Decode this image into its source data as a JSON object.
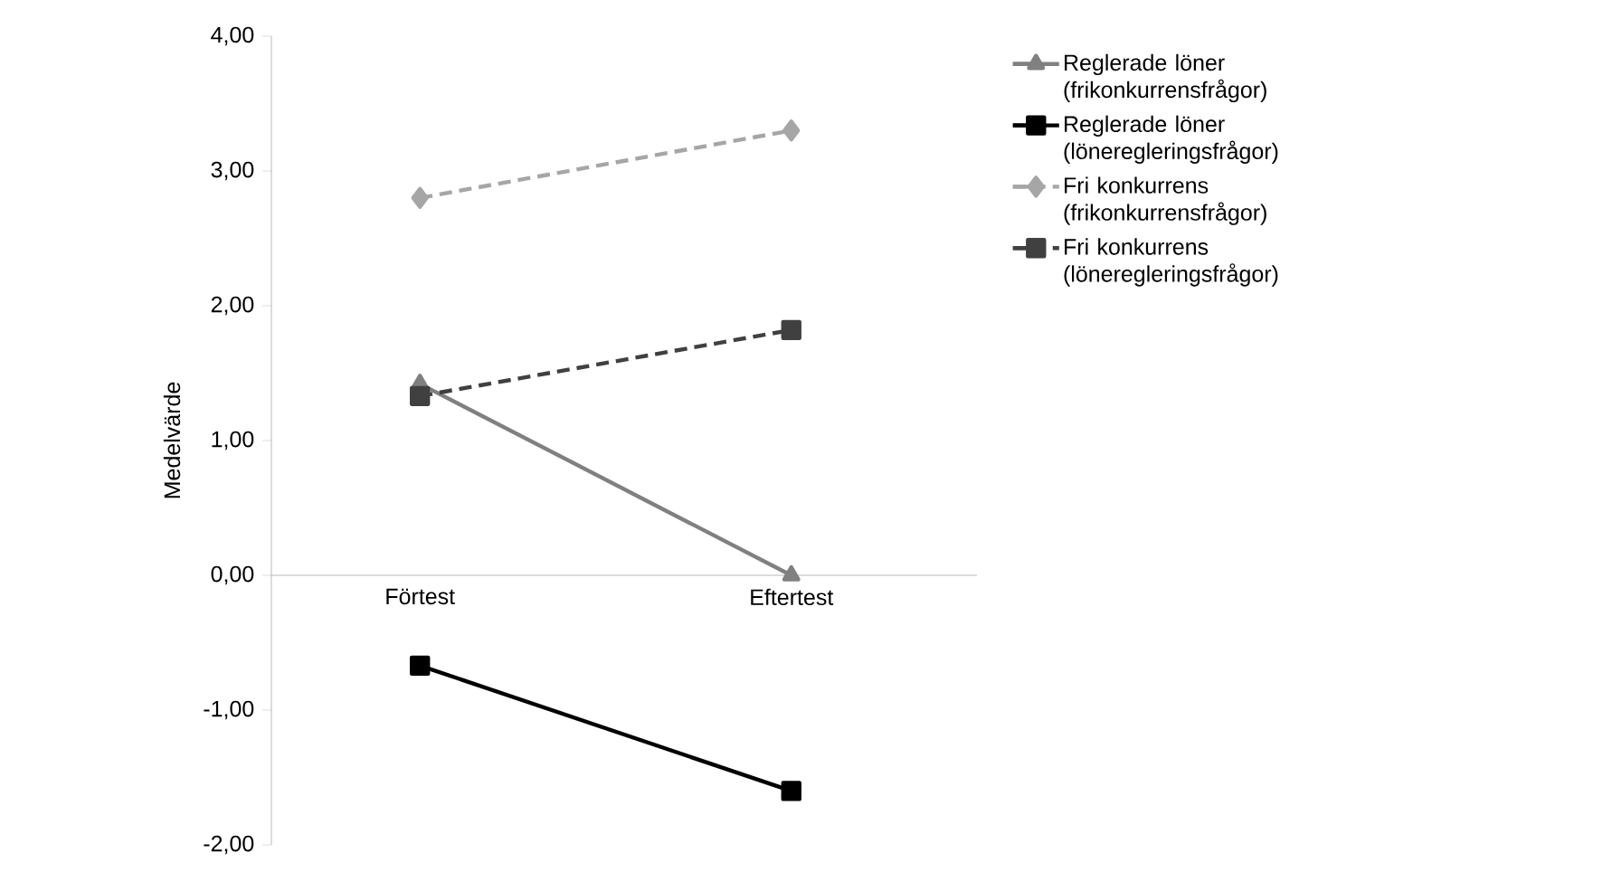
{
  "chart_data": {
    "type": "line",
    "ylabel": "Medelvärde",
    "categories": [
      "Förtest",
      "Eftertest"
    ],
    "ylim": [
      -2,
      4
    ],
    "yticks": [
      {
        "value": -2,
        "label": "-2,00"
      },
      {
        "value": -1,
        "label": "-1,00"
      },
      {
        "value": 0,
        "label": "0,00"
      },
      {
        "value": 1,
        "label": "1,00"
      },
      {
        "value": 2,
        "label": "2,00"
      },
      {
        "value": 3,
        "label": "3,00"
      },
      {
        "value": 4,
        "label": "4,00"
      }
    ],
    "grid": false,
    "legend": "right",
    "series": [
      {
        "name": "Reglerade löner (frikonkurrensfrågor)",
        "color": "#808080",
        "values": [
          1.42,
          0.0
        ],
        "marker": "triangle",
        "line_style": "solid"
      },
      {
        "name": "Reglerade löner (löneregleringsfrågor)",
        "color": "#000000",
        "values": [
          -0.67,
          -1.6
        ],
        "marker": "square",
        "line_style": "solid"
      },
      {
        "name": "Fri konkurrens (frikonkurrensfrågor)",
        "color": "#a6a6a6",
        "values": [
          2.8,
          3.3
        ],
        "marker": "diamond",
        "line_style": "dashed"
      },
      {
        "name": "Fri konkurrens (löneregleringsfrågor)",
        "color": "#404040",
        "values": [
          1.33,
          1.82
        ],
        "marker": "square",
        "line_style": "dashed"
      }
    ]
  }
}
